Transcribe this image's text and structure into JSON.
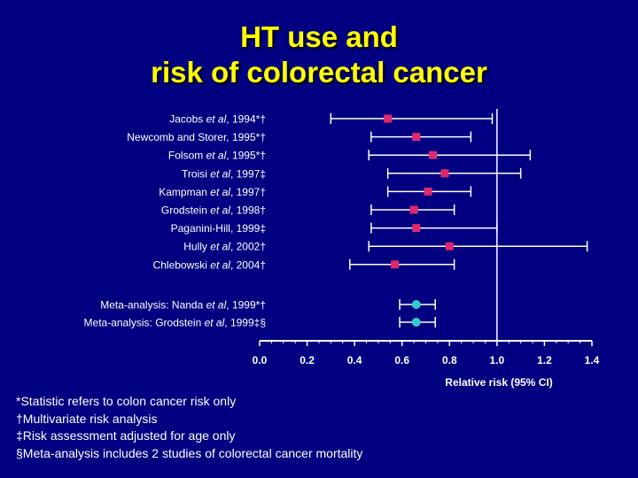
{
  "title": {
    "line1": "HT use and",
    "line2": "risk of colorectal cancer"
  },
  "colors": {
    "background": "#000080",
    "title": "#FFFF00",
    "text": "#FFFFFF",
    "study_marker": "#E0286E",
    "meta_marker": "#33CCCC"
  },
  "chart_data": {
    "type": "scatter",
    "subtype": "forest-plot",
    "xlabel": "Relative risk (95% CI)",
    "xlim": [
      0.0,
      1.4
    ],
    "xticks": [
      "0.0",
      "0.2",
      "0.4",
      "0.6",
      "0.8",
      "1.0",
      "1.2",
      "1.4"
    ],
    "reference_line": 1.0,
    "studies": [
      {
        "pre": "Jacobs ",
        "ital": "et al",
        "post": ", 1994*†",
        "rr": 0.54,
        "lo": 0.3,
        "hi": 0.98,
        "kind": "study"
      },
      {
        "pre": "Newcomb and Storer, 1995*†",
        "ital": "",
        "post": "",
        "rr": 0.66,
        "lo": 0.47,
        "hi": 0.89,
        "kind": "study"
      },
      {
        "pre": "Folsom ",
        "ital": "et al",
        "post": ", 1995*†",
        "rr": 0.73,
        "lo": 0.46,
        "hi": 1.14,
        "kind": "study"
      },
      {
        "pre": "Troisi ",
        "ital": "et al",
        "post": ", 1997‡",
        "rr": 0.78,
        "lo": 0.54,
        "hi": 1.1,
        "kind": "study"
      },
      {
        "pre": "Kampman ",
        "ital": "et al",
        "post": ", 1997†",
        "rr": 0.71,
        "lo": 0.54,
        "hi": 0.89,
        "kind": "study"
      },
      {
        "pre": "Grodstein ",
        "ital": "et al",
        "post": ", 1998†",
        "rr": 0.65,
        "lo": 0.47,
        "hi": 0.82,
        "kind": "study"
      },
      {
        "pre": "Paganini-Hill, 1999‡",
        "ital": "",
        "post": "",
        "rr": 0.66,
        "lo": 0.47,
        "hi": 1.0,
        "kind": "study"
      },
      {
        "pre": "Hully ",
        "ital": "et al",
        "post": ", 2002†",
        "rr": 0.8,
        "lo": 0.46,
        "hi": 1.38,
        "kind": "study"
      },
      {
        "pre": "Chlebowski ",
        "ital": "et al",
        "post": ", 2004†",
        "rr": 0.57,
        "lo": 0.38,
        "hi": 0.82,
        "kind": "study"
      },
      {
        "pre": "Meta-analysis: Nanda ",
        "ital": "et al",
        "post": ", 1999*†",
        "rr": 0.66,
        "lo": 0.59,
        "hi": 0.74,
        "kind": "meta"
      },
      {
        "pre": "Meta-analysis: Grodstein ",
        "ital": "et al",
        "post": ", 1999‡§",
        "rr": 0.66,
        "lo": 0.59,
        "hi": 0.74,
        "kind": "meta"
      }
    ]
  },
  "footnotes": [
    "*Statistic refers to colon cancer risk only",
    "†Multivariate risk analysis",
    "‡Risk assessment adjusted for age only",
    "§Meta-analysis includes 2 studies of colorectal cancer mortality"
  ]
}
